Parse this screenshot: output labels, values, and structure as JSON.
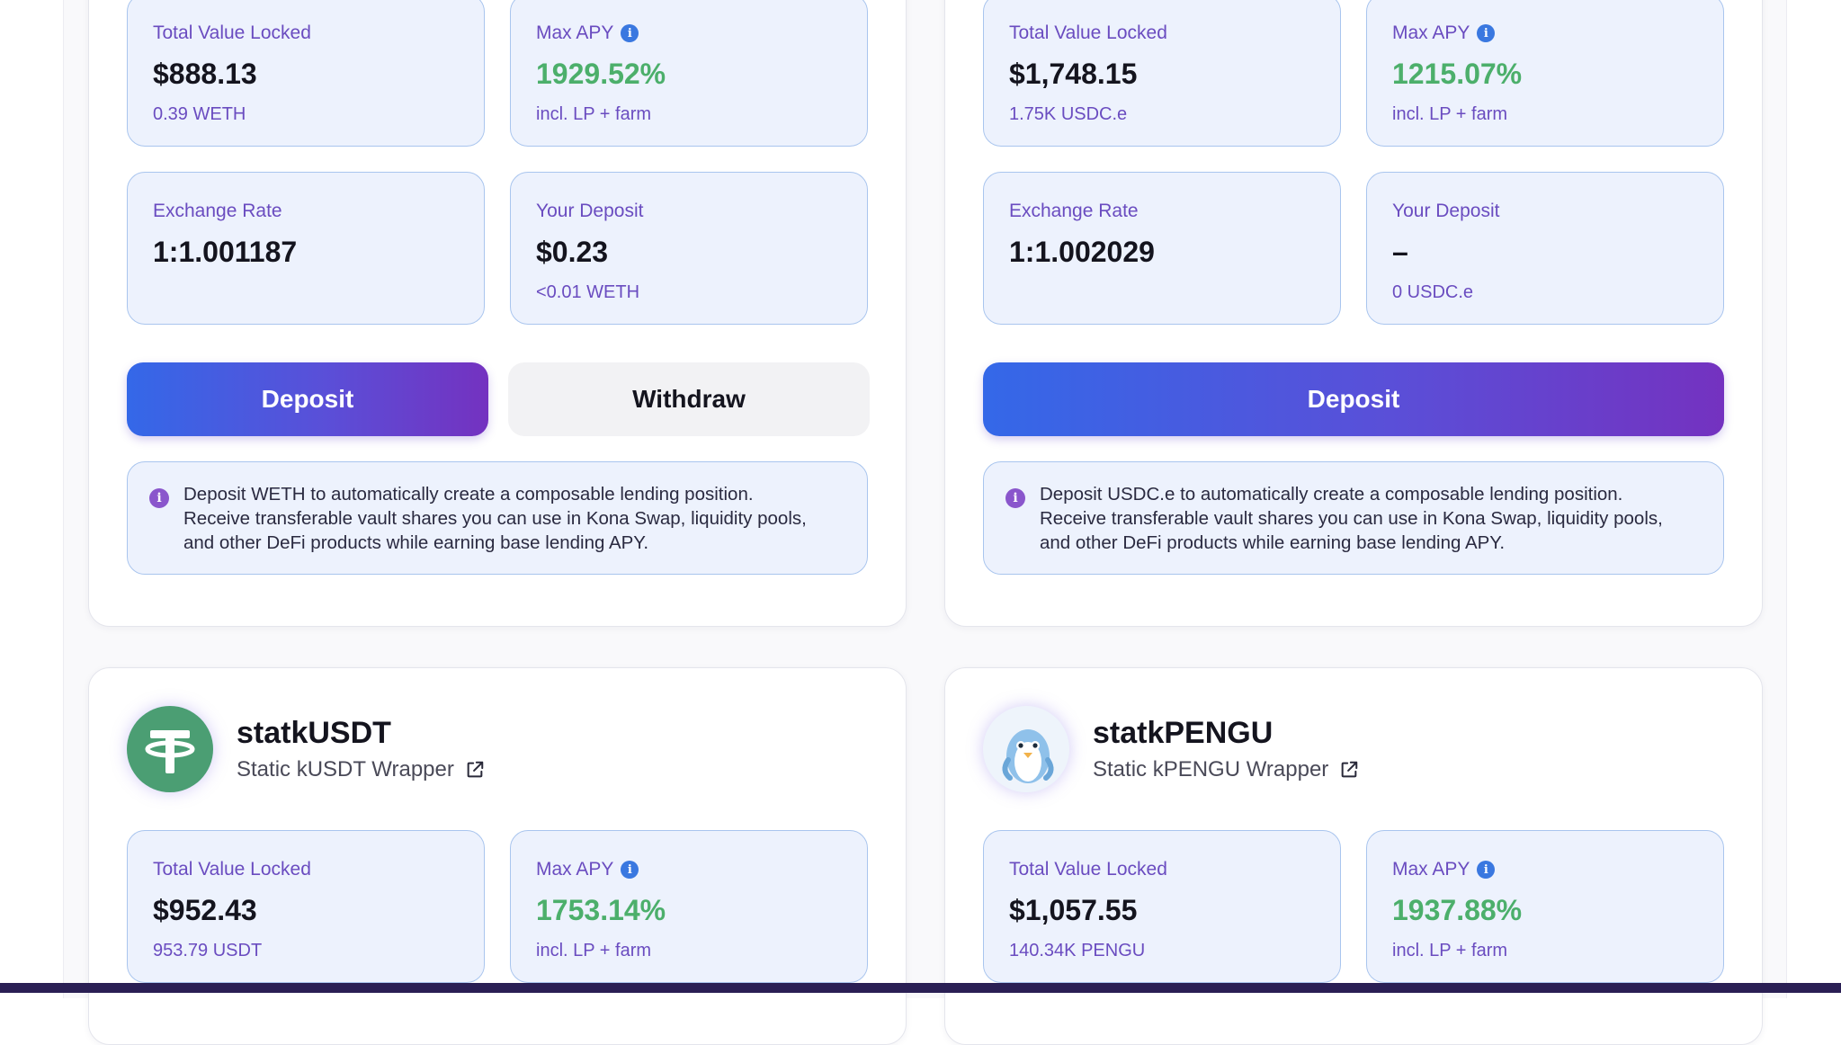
{
  "vaults": [
    {
      "tvl_label": "Total Value Locked",
      "tvl_value": "$888.13",
      "tvl_sub": "0.39 WETH",
      "apy_label": "Max APY",
      "apy_value": "1929.52%",
      "apy_sub": "incl. LP + farm",
      "rate_label": "Exchange Rate",
      "rate_value": "1:1.001187",
      "deposit_label": "Your Deposit",
      "deposit_value": "$0.23",
      "deposit_sub": "<0.01 WETH",
      "deposit_button": "Deposit",
      "withdraw_button": "Withdraw",
      "note_line1": "Deposit WETH to automatically create a composable lending position.",
      "note_line2": "Receive transferable vault shares you can use in Kona Swap, liquidity pools,",
      "note_line3": "and other DeFi products while earning base lending APY."
    },
    {
      "tvl_label": "Total Value Locked",
      "tvl_value": "$1,748.15",
      "tvl_sub": "1.75K USDC.e",
      "apy_label": "Max APY",
      "apy_value": "1215.07%",
      "apy_sub": "incl. LP + farm",
      "rate_label": "Exchange Rate",
      "rate_value": "1:1.002029",
      "deposit_label": "Your Deposit",
      "deposit_value": "–",
      "deposit_sub": "0 USDC.e",
      "deposit_button": "Deposit",
      "note_line1": "Deposit USDC.e to automatically create a composable lending position.",
      "note_line2": "Receive transferable vault shares you can use in Kona Swap, liquidity pools,",
      "note_line3": "and other DeFi products while earning base lending APY."
    },
    {
      "name": "statkUSDT",
      "subtitle": "Static kUSDT Wrapper",
      "logo_icon": "tether-logo-icon",
      "tvl_label": "Total Value Locked",
      "tvl_value": "$952.43",
      "tvl_sub": "953.79 USDT",
      "apy_label": "Max APY",
      "apy_value": "1753.14%",
      "apy_sub": "incl. LP + farm"
    },
    {
      "name": "statkPENGU",
      "subtitle": "Static kPENGU Wrapper",
      "logo_icon": "pengu-logo-icon",
      "tvl_label": "Total Value Locked",
      "tvl_value": "$1,057.55",
      "tvl_sub": "140.34K PENGU",
      "apy_label": "Max APY",
      "apy_value": "1937.88%",
      "apy_sub": "incl. LP + farm"
    }
  ],
  "colors": {
    "accent_gradient_start": "#3468e8",
    "accent_gradient_end": "#7432c0",
    "apy_green": "#4caf6b",
    "label_purple": "#6a4cc0",
    "box_bg": "#edf2fd",
    "box_border": "#a9c5ee"
  }
}
